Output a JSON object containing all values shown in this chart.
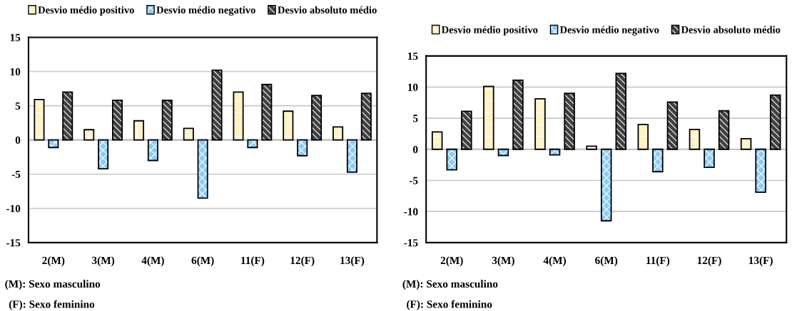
{
  "chart_data": [
    {
      "type": "bar",
      "categories": [
        "2(M)",
        "3(M)",
        "4(M)",
        "6(M)",
        "11(F)",
        "12(F)",
        "13(F)"
      ],
      "series": [
        {
          "name": "Desvio médio positivo",
          "color": "#fff2c4",
          "values": [
            5.9,
            1.5,
            2.8,
            1.7,
            7.0,
            4.2,
            1.9
          ]
        },
        {
          "name": "Desvio médio negativo",
          "color": "#8ccbf4",
          "values": [
            -1.1,
            -4.2,
            -3.0,
            -8.5,
            -1.1,
            -2.3,
            -4.7
          ]
        },
        {
          "name": "Desvio absoluto médio",
          "color": "#404040",
          "values": [
            7.0,
            5.8,
            5.8,
            10.2,
            8.1,
            6.5,
            6.8
          ]
        }
      ],
      "ylim": [
        -15,
        15
      ],
      "yticks": [
        -15,
        -10,
        -5,
        0,
        5,
        10,
        15
      ],
      "grid": "y",
      "legend": "top",
      "annotations": [
        "(M): Sexo masculino",
        "(F): Sexo feminino"
      ]
    },
    {
      "type": "bar",
      "categories": [
        "2(M)",
        "3(M)",
        "4(M)",
        "6(M)",
        "11(F)",
        "12(F)",
        "13(F)"
      ],
      "series": [
        {
          "name": "Desvio médio positivo",
          "color": "#fff2c4",
          "values": [
            2.8,
            10.1,
            8.1,
            0.5,
            4.0,
            3.2,
            1.7
          ]
        },
        {
          "name": "Desvio médio negativo",
          "color": "#8ccbf4",
          "values": [
            -3.3,
            -1.0,
            -0.9,
            -11.5,
            -3.6,
            -2.9,
            -6.9
          ]
        },
        {
          "name": "Desvio absoluto médio",
          "color": "#404040",
          "values": [
            6.1,
            11.1,
            9.0,
            12.2,
            7.6,
            6.2,
            8.7
          ]
        }
      ],
      "ylim": [
        -15,
        15
      ],
      "yticks": [
        -15,
        -10,
        -5,
        0,
        5,
        10,
        15
      ],
      "grid": "y",
      "legend": "top",
      "annotations": [
        "(M): Sexo masculino",
        "(F): Sexo feminino"
      ]
    }
  ]
}
